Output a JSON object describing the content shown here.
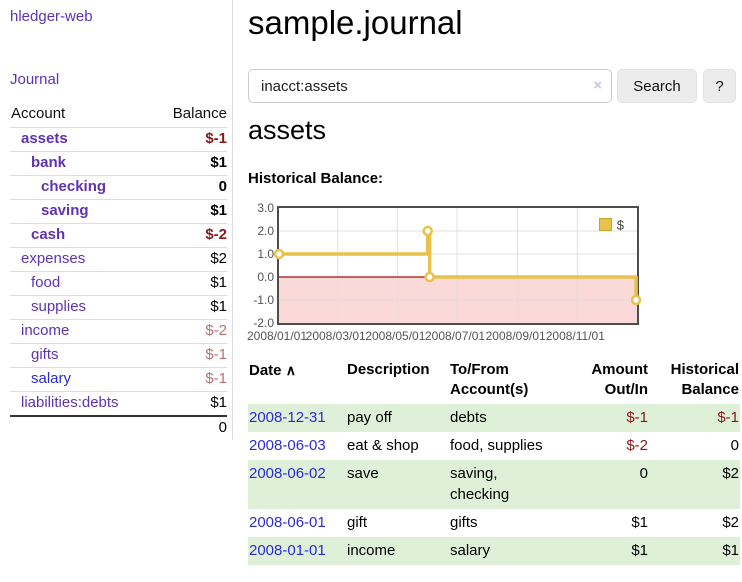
{
  "sidebar": {
    "app_title": "hledger-web",
    "journal_link": "Journal",
    "accounts": {
      "header_account": "Account",
      "header_balance": "Balance",
      "rows": [
        {
          "name": "assets",
          "balance": "$-1"
        },
        {
          "name": "bank",
          "balance": "$1"
        },
        {
          "name": "checking",
          "balance": "0"
        },
        {
          "name": "saving",
          "balance": "$1"
        },
        {
          "name": "cash",
          "balance": "$-2"
        },
        {
          "name": "expenses",
          "balance": "$2"
        },
        {
          "name": "food",
          "balance": "$1"
        },
        {
          "name": "supplies",
          "balance": "$1"
        },
        {
          "name": "income",
          "balance": "$-2"
        },
        {
          "name": "gifts",
          "balance": "$-1"
        },
        {
          "name": "salary",
          "balance": "$-1"
        },
        {
          "name": "liabilities:debts",
          "balance": "$1"
        }
      ],
      "total": "0"
    }
  },
  "main": {
    "title": "sample.journal",
    "search": {
      "value": "inacct:assets",
      "clear_icon": "×",
      "search_label": "Search",
      "help_label": "?"
    },
    "heading": "assets",
    "chart_title": "Historical Balance:",
    "register": {
      "sort_icon": "∧",
      "headers": {
        "date": "Date",
        "description": "Description",
        "accounts": "To/From Account(s)",
        "amount": "Amount Out/In",
        "balance": "Historical Balance"
      },
      "rows": [
        {
          "date": "2008-12-31",
          "description": "pay off",
          "accounts": "debts",
          "amount": "$-1",
          "balance": "$-1"
        },
        {
          "date": "2008-06-03",
          "description": "eat & shop",
          "accounts": "food, supplies",
          "amount": "$-2",
          "balance": "0"
        },
        {
          "date": "2008-06-02",
          "description": "save",
          "accounts": "saving, checking",
          "amount": "0",
          "balance": "$2"
        },
        {
          "date": "2008-06-01",
          "description": "gift",
          "accounts": "gifts",
          "amount": "$1",
          "balance": "$2"
        },
        {
          "date": "2008-01-01",
          "description": "income",
          "accounts": "salary",
          "amount": "$1",
          "balance": "$1"
        }
      ]
    }
  },
  "colors": {
    "link_purple": "#5f33b0",
    "link_blue": "#2c2cd6",
    "negative_strong": "#8b1717",
    "negative_soft": "#bb6f6f",
    "row_stripe_green": "#dff0d8",
    "chart_line_gold": "#e8c24a"
  },
  "chart_data": {
    "type": "line",
    "title": "Historical Balance",
    "step": true,
    "series": [
      {
        "name": "$",
        "color": "#e8c24a",
        "points": [
          [
            "2008-01-01",
            1
          ],
          [
            "2008-06-01",
            2
          ],
          [
            "2008-06-03",
            0
          ],
          [
            "2008-12-31",
            -1
          ]
        ]
      }
    ],
    "xlim": [
      "2008-01-01",
      "2009-01-01"
    ],
    "ylim": [
      -2,
      3
    ],
    "x_ticks": [
      "2008/01/01",
      "2008/03/01",
      "2008/05/01",
      "2008/07/01",
      "2008/09/01",
      "2008/11/01"
    ],
    "y_ticks": [
      "3.0",
      "2.0",
      "1.0",
      "0.0",
      "-1.0",
      "-2.0"
    ],
    "grid": true,
    "grid_color": "#e0e0e0",
    "legend_position": "top-right",
    "negative_region_color": "#fbd9d9",
    "zero_line_color": "#9e1010",
    "plot_border_color": "#4d4d4d"
  }
}
